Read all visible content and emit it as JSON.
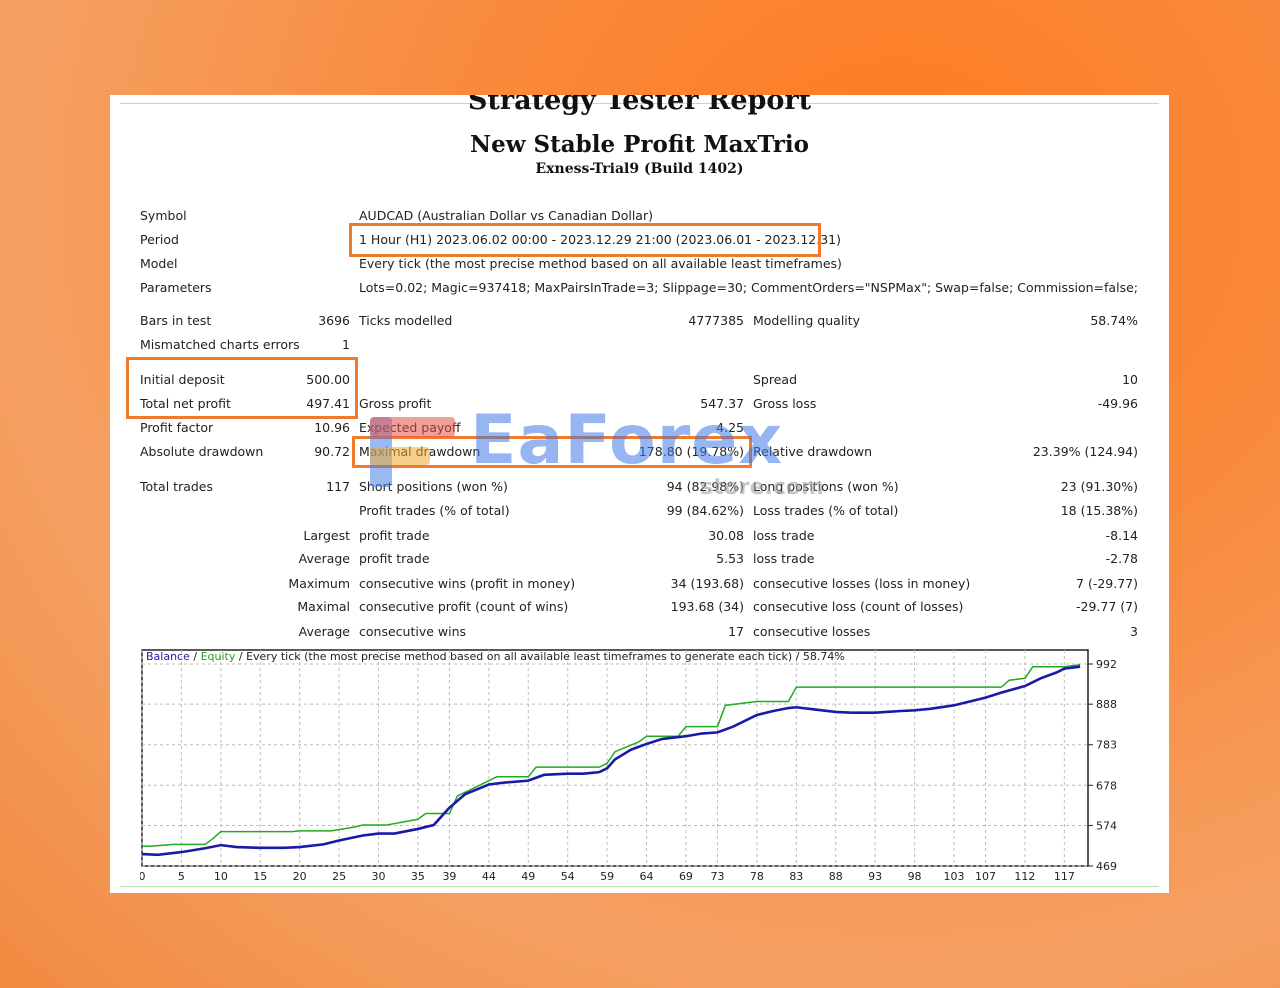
{
  "report": {
    "title": "Strategy Tester Report",
    "ea_name": "New Stable Profit MaxTrio",
    "server": "Exness-Trial9 (Build 1402)"
  },
  "info": [
    {
      "label": "Symbol",
      "value": "AUDCAD (Australian Dollar vs Canadian Dollar)"
    },
    {
      "label": "Period",
      "value": "1 Hour (H1) 2023.06.02 00:00 - 2023.12.29 21:00 (2023.06.01 - 2023.12.31)"
    },
    {
      "label": "Model",
      "value": "Every tick (the most precise method based on all available least timeframes)"
    },
    {
      "label": "Parameters",
      "value": "Lots=0.02; Magic=937418; MaxPairsInTrade=3; Slippage=30; CommentOrders=\"NSPMax\"; Swap=false; Commission=false;"
    }
  ],
  "stats": {
    "bars_in_test": {
      "label": "Bars in test",
      "value": "3696"
    },
    "ticks_modelled": {
      "label": "Ticks modelled",
      "value": "4777385"
    },
    "modelling_quality": {
      "label": "Modelling quality",
      "value": "58.74%"
    },
    "mismatched": {
      "label": "Mismatched charts errors",
      "value": "1"
    },
    "initial_deposit": {
      "label": "Initial deposit",
      "value": "500.00"
    },
    "spread": {
      "label": "Spread",
      "value": "10"
    },
    "total_net_profit": {
      "label": "Total net profit",
      "value": "497.41"
    },
    "gross_profit": {
      "label": "Gross profit",
      "value": "547.37"
    },
    "gross_loss": {
      "label": "Gross loss",
      "value": "-49.96"
    },
    "profit_factor": {
      "label": "Profit factor",
      "value": "10.96"
    },
    "expected_payoff": {
      "label": "Expected payoff",
      "value": "4.25"
    },
    "absolute_drawdown": {
      "label": "Absolute drawdown",
      "value": "90.72"
    },
    "maximal_drawdown": {
      "label": "Maximal drawdown",
      "value": "178.80 (19.78%)"
    },
    "relative_drawdown": {
      "label": "Relative drawdown",
      "value": "23.39% (124.94)"
    },
    "total_trades": {
      "label": "Total trades",
      "value": "117"
    },
    "short_positions": {
      "label": "Short positions (won %)",
      "value": "94 (82.98%)"
    },
    "long_positions": {
      "label": "Long positions (won %)",
      "value": "23 (91.30%)"
    },
    "profit_trades": {
      "label": "Profit trades (% of total)",
      "value": "99 (84.62%)"
    },
    "loss_trades": {
      "label": "Loss trades (% of total)",
      "value": "18 (15.38%)"
    }
  },
  "details": [
    {
      "prefix": "Largest",
      "l1": "profit trade",
      "v1": "30.08",
      "l2": "loss trade",
      "v2": "-8.14"
    },
    {
      "prefix": "Average",
      "l1": "profit trade",
      "v1": "5.53",
      "l2": "loss trade",
      "v2": "-2.78"
    },
    {
      "prefix": "Maximum",
      "l1": "consecutive wins (profit in money)",
      "v1": "34 (193.68)",
      "l2": "consecutive losses (loss in money)",
      "v2": "7 (-29.77)"
    },
    {
      "prefix": "Maximal",
      "l1": "consecutive profit (count of wins)",
      "v1": "193.68 (34)",
      "l2": "consecutive loss (count of losses)",
      "v2": "-29.77 (7)"
    },
    {
      "prefix": "Average",
      "l1": "consecutive wins",
      "v1": "17",
      "l2": "consecutive losses",
      "v2": "3"
    }
  ],
  "watermark": {
    "brand": "EaForex",
    "sub": "store.com"
  },
  "chart_data": {
    "type": "line",
    "legend": {
      "balance": "Balance",
      "sep1": " / ",
      "equity": "Equity",
      "rest": " / Every tick (the most precise method based on all available least timeframes to generate each tick) / 58.74%"
    },
    "x_ticks": [
      0,
      5,
      10,
      15,
      20,
      25,
      30,
      35,
      39,
      44,
      49,
      54,
      59,
      64,
      69,
      73,
      78,
      83,
      88,
      93,
      98,
      103,
      107,
      112,
      117
    ],
    "y_ticks": [
      469,
      574,
      678,
      783,
      888,
      992
    ],
    "ylim": [
      469,
      992
    ],
    "xlim": [
      0,
      120
    ],
    "grid": true,
    "colors": {
      "balance": "#1a1aa6",
      "equity": "#22aa22",
      "grid": "#bdbdbd",
      "axis": "#222222"
    },
    "series": [
      {
        "name": "Balance",
        "x": [
          0,
          2,
          5,
          8,
          10,
          12,
          15,
          18,
          20,
          23,
          25,
          28,
          30,
          32,
          35,
          37,
          39,
          41,
          44,
          46,
          49,
          51,
          54,
          56,
          58,
          59,
          60,
          62,
          64,
          66,
          69,
          71,
          73,
          75,
          78,
          80,
          82,
          83,
          85,
          88,
          90,
          93,
          96,
          98,
          100,
          103,
          105,
          107,
          109,
          112,
          114,
          116,
          117,
          119
        ],
        "y": [
          500,
          498,
          505,
          515,
          523,
          518,
          516,
          516,
          518,
          525,
          535,
          548,
          553,
          553,
          565,
          575,
          620,
          655,
          680,
          685,
          690,
          705,
          708,
          708,
          712,
          722,
          745,
          770,
          785,
          798,
          805,
          812,
          815,
          830,
          860,
          870,
          878,
          880,
          875,
          868,
          866,
          866,
          870,
          872,
          876,
          885,
          895,
          905,
          918,
          935,
          955,
          970,
          980,
          985
        ]
      },
      {
        "name": "Equity",
        "x": [
          0,
          1,
          4,
          8,
          9,
          10,
          15,
          19,
          20,
          24,
          27,
          28,
          31,
          35,
          36,
          39,
          40,
          44,
          45,
          49,
          50,
          54,
          58,
          59,
          60,
          63,
          64,
          68,
          69,
          73,
          74,
          78,
          82,
          83,
          88,
          98,
          105,
          109,
          110,
          112,
          113,
          117,
          119
        ],
        "y": [
          520,
          520,
          525,
          525,
          540,
          558,
          558,
          558,
          560,
          560,
          570,
          575,
          575,
          590,
          605,
          605,
          650,
          690,
          700,
          700,
          725,
          725,
          725,
          735,
          765,
          790,
          805,
          805,
          830,
          830,
          885,
          895,
          895,
          932,
          932,
          932,
          932,
          932,
          950,
          955,
          985,
          985,
          990
        ]
      }
    ]
  }
}
